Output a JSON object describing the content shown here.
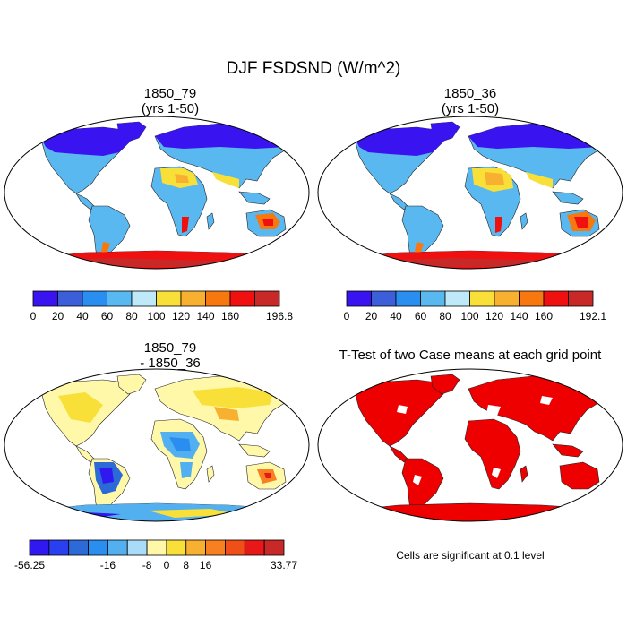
{
  "title": "DJF FSDSND (W/m^2)",
  "panels": [
    {
      "title_line1": "1850_79",
      "title_line2": "(yrs 1-50)",
      "colorbar": {
        "colors": [
          "#3a14f0",
          "#3c5ed8",
          "#2a8ef0",
          "#5ab8f0",
          "#bfe8f8",
          "#f8e038",
          "#f8b030",
          "#f87810",
          "#f01010",
          "#c82828"
        ],
        "labels": [
          "0",
          "20",
          "40",
          "60",
          "80",
          "100",
          "120",
          "140",
          "160",
          "196.8"
        ]
      }
    },
    {
      "title_line1": "1850_36",
      "title_line2": "(yrs 1-50)",
      "colorbar": {
        "colors": [
          "#3a14f0",
          "#3c5ed8",
          "#2a8ef0",
          "#5ab8f0",
          "#bfe8f8",
          "#f8e038",
          "#f8b030",
          "#f87810",
          "#f01010",
          "#c82828"
        ],
        "labels": [
          "0",
          "20",
          "40",
          "60",
          "80",
          "100",
          "120",
          "140",
          "160",
          "192.1"
        ]
      }
    },
    {
      "title_line1": "1850_79",
      "title_line2": "- 1850_36",
      "colorbar": {
        "colors": [
          "#3018f0",
          "#2a40f0",
          "#2c6ad8",
          "#2a8ef0",
          "#52b0f0",
          "#a8dcf8",
          "#fff8a8",
          "#f8e038",
          "#f8b030",
          "#f88020",
          "#f05018",
          "#e81818",
          "#c82828"
        ],
        "labels": [
          "-56.25",
          "-16",
          "-8",
          "0",
          "8",
          "16",
          "33.77"
        ]
      }
    },
    {
      "title": "T-Test of two Case means at each grid point",
      "note": "Cells are significant at 0.1 level"
    }
  ]
}
